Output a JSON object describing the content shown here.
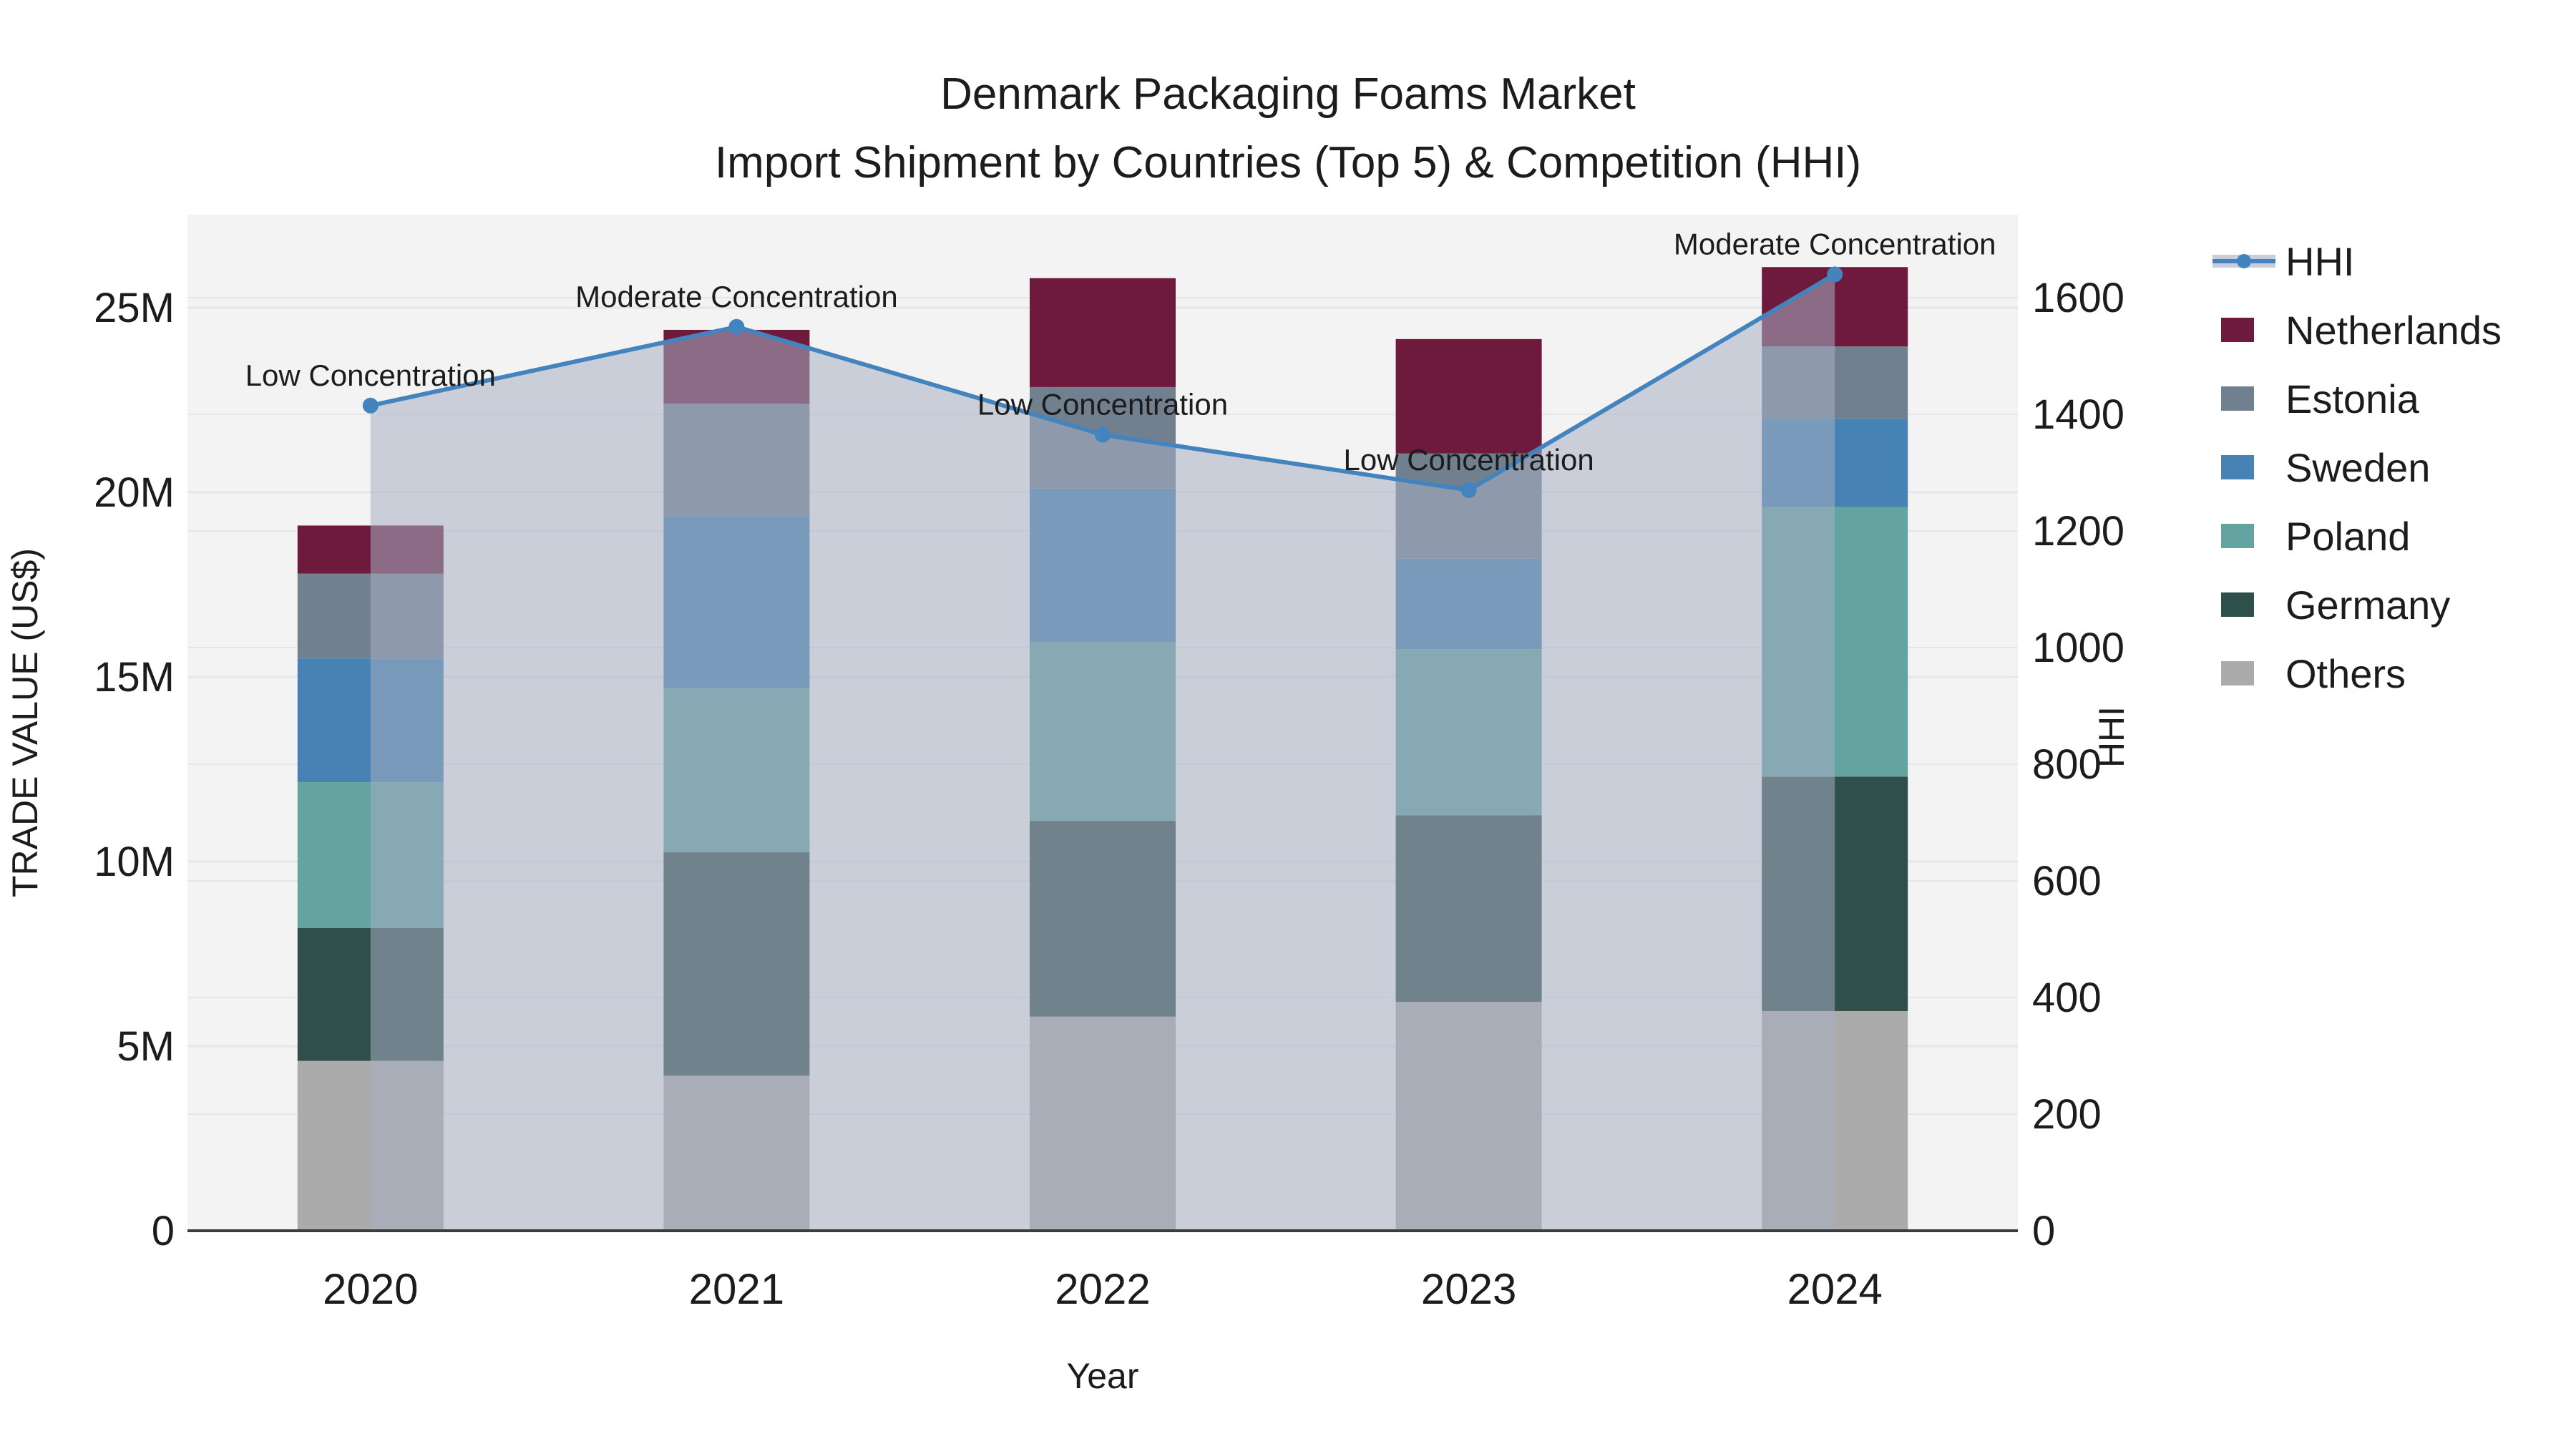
{
  "title": {
    "line1": "Denmark Packaging Foams Market",
    "line2": "Import Shipment by Countries (Top 5) & Competition (HHI)"
  },
  "axes": {
    "y_left": {
      "title": "TRADE VALUE (US$)",
      "ticks": [
        "0",
        "5M",
        "10M",
        "15M",
        "20M",
        "25M"
      ],
      "tick_values_m": [
        0,
        5,
        10,
        15,
        20,
        25
      ]
    },
    "y_right": {
      "title": "HHI",
      "ticks": [
        "0",
        "200",
        "400",
        "600",
        "800",
        "1000",
        "1200",
        "1400",
        "1600"
      ],
      "tick_values": [
        0,
        200,
        400,
        600,
        800,
        1000,
        1200,
        1400,
        1600
      ]
    },
    "x": {
      "title": "Year"
    }
  },
  "legend": {
    "items": [
      {
        "label": "HHI",
        "type": "line"
      },
      {
        "label": "Netherlands",
        "type": "swatch"
      },
      {
        "label": "Estonia",
        "type": "swatch"
      },
      {
        "label": "Sweden",
        "type": "swatch"
      },
      {
        "label": "Poland",
        "type": "swatch"
      },
      {
        "label": "Germany",
        "type": "swatch"
      },
      {
        "label": "Others",
        "type": "swatch"
      }
    ]
  },
  "annotations": [
    {
      "year": "2020",
      "label": "Low Concentration"
    },
    {
      "year": "2021",
      "label": "Moderate Concentration"
    },
    {
      "year": "2022",
      "label": "Low Concentration"
    },
    {
      "year": "2023",
      "label": "Low Concentration"
    },
    {
      "year": "2024",
      "label": "Moderate Concentration"
    }
  ],
  "colors": {
    "hhi_line": "#4484BE",
    "hhi_fill": "rgba(166,175,195,0.55)",
    "hhi_legend_band": "#C8CDD9",
    "plot_bg": "#F3F3F3",
    "grid": "#E5E6E8",
    "axis_line": "#3C3C3C",
    "text": "#1C1C1C"
  },
  "chart_data": {
    "type": "stacked-bar+line",
    "title": "Denmark Packaging Foams Market — Import Shipment by Countries (Top 5) & Competition (HHI)",
    "categories": [
      "2020",
      "2021",
      "2022",
      "2023",
      "2024"
    ],
    "xlabel": "Year",
    "ylabel_left": "TRADE VALUE (US$)",
    "ylabel_right": "HHI",
    "unit": "Million US$",
    "ylim_left_m": [
      0,
      27.5
    ],
    "ylim_right": [
      0,
      1742
    ],
    "grid": true,
    "legend_position": "right",
    "series": [
      {
        "name": "Others",
        "color": "#ABABAB",
        "values_m": [
          4.6,
          4.2,
          5.8,
          6.2,
          5.95
        ]
      },
      {
        "name": "Germany",
        "color": "#2F4F4B",
        "values_m": [
          3.6,
          6.05,
          5.3,
          5.05,
          6.35
        ]
      },
      {
        "name": "Poland",
        "color": "#63A3A0",
        "values_m": [
          3.95,
          4.45,
          4.85,
          4.5,
          7.3
        ]
      },
      {
        "name": "Sweden",
        "color": "#4682B4",
        "values_m": [
          3.35,
          4.65,
          4.15,
          2.45,
          2.4
        ]
      },
      {
        "name": "Estonia",
        "color": "#71808F",
        "values_m": [
          2.3,
          3.05,
          2.75,
          2.85,
          1.95
        ]
      },
      {
        "name": "Netherlands",
        "color": "#6E1A3D",
        "values_m": [
          1.3,
          2.0,
          2.95,
          3.1,
          2.15
        ]
      }
    ],
    "totals_m": [
      19.1,
      24.4,
      25.8,
      24.15,
      26.1
    ],
    "line": {
      "name": "HHI",
      "axis": "right",
      "values": [
        1415,
        1550,
        1365,
        1270,
        1640
      ],
      "has_area_fill": true
    }
  }
}
